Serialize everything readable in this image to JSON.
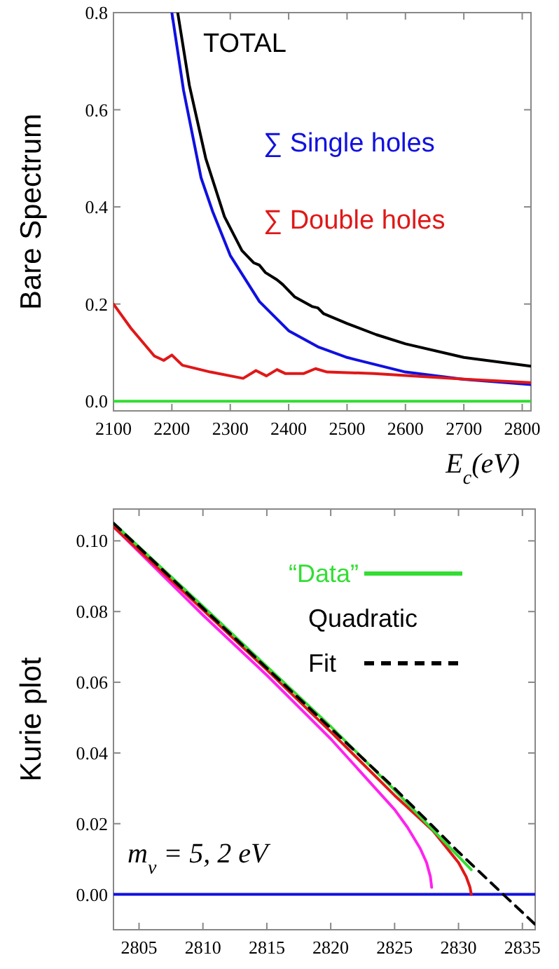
{
  "chart_data": [
    {
      "type": "line",
      "xlabel": "E$_{c}$(eV)",
      "ylabel": "Bare Spectrum",
      "xlim": [
        2100,
        2815
      ],
      "ylim": [
        -0.02,
        0.8
      ],
      "xticks": [
        2100,
        2200,
        2300,
        2400,
        2500,
        2600,
        2700,
        2800
      ],
      "yticks": [
        {
          "value": 0,
          "label": "0.0"
        },
        0.2,
        0.4,
        0.6,
        0.8
      ],
      "legend": false,
      "grid": false,
      "series": [
        {
          "color": "#33dd33",
          "x": [
            2100,
            2815
          ],
          "values": [
            0,
            0
          ]
        },
        {
          "name": "∑ Single holes",
          "color": "#1010e0",
          "x": [
            2200,
            2220,
            2250,
            2270,
            2300,
            2350,
            2400,
            2450,
            2500,
            2600,
            2700,
            2815
          ],
          "values": [
            0.8,
            0.64,
            0.46,
            0.39,
            0.3,
            0.205,
            0.145,
            0.112,
            0.09,
            0.06,
            0.045,
            0.034
          ]
        },
        {
          "name": "∑ Double holes",
          "color": "#e01818",
          "x": [
            2100,
            2130,
            2170,
            2186,
            2200,
            2218,
            2266,
            2322,
            2344,
            2362,
            2380,
            2394,
            2426,
            2446,
            2466,
            2546,
            2706,
            2815
          ],
          "values": [
            0.2,
            0.15,
            0.093,
            0.084,
            0.095,
            0.074,
            0.06,
            0.047,
            0.063,
            0.052,
            0.065,
            0.057,
            0.057,
            0.067,
            0.06,
            0.057,
            0.045,
            0.038
          ]
        },
        {
          "name": "TOTAL",
          "color": "#000000",
          "x": [
            2210,
            2230,
            2258,
            2290,
            2320,
            2340,
            2350,
            2360,
            2380,
            2390,
            2410,
            2440,
            2450,
            2460,
            2500,
            2550,
            2600,
            2700,
            2815
          ],
          "values": [
            0.8,
            0.65,
            0.5,
            0.38,
            0.31,
            0.285,
            0.28,
            0.265,
            0.25,
            0.24,
            0.215,
            0.195,
            0.192,
            0.18,
            0.16,
            0.137,
            0.118,
            0.09,
            0.072
          ]
        }
      ]
    },
    {
      "type": "line",
      "ylabel": "Kurie plot",
      "xlim": [
        2803,
        2836
      ],
      "ylim": [
        -0.01,
        0.109
      ],
      "xticks": [
        2805,
        2810,
        2815,
        2820,
        2825,
        2830,
        2835
      ],
      "yticks": [
        {
          "value": 0,
          "label": "0.00"
        },
        {
          "value": 0.02,
          "label": "0.02"
        },
        {
          "value": 0.04,
          "label": "0.04"
        },
        {
          "value": 0.06,
          "label": "0.06"
        },
        {
          "value": 0.08,
          "label": "0.08"
        },
        {
          "value": 0.1,
          "label": "0.10"
        }
      ],
      "legend": "top right",
      "grid": false,
      "annotations": [
        "m$_{ν}$ = 5, 2 eV"
      ],
      "series": [
        {
          "color": "#1010e0",
          "x": [
            2803,
            2836
          ],
          "values": [
            0,
            0
          ]
        },
        {
          "color": "#ff22ee",
          "x": [
            2803,
            2810,
            2815,
            2820,
            2825,
            2826,
            2827,
            2827.5,
            2827.8,
            2827.9
          ],
          "values": [
            0.104,
            0.079,
            0.062,
            0.044,
            0.024,
            0.019,
            0.013,
            0.009,
            0.005,
            0.002
          ]
        },
        {
          "color": "#e01818",
          "x": [
            2803,
            2810,
            2815,
            2820,
            2825,
            2828,
            2830,
            2830.6,
            2830.9,
            2831
          ],
          "values": [
            0.104,
            0.0805,
            0.0635,
            0.046,
            0.028,
            0.018,
            0.009,
            0.005,
            0.002,
            0
          ]
        },
        {
          "name": "“Data”",
          "color": "#33dd33",
          "x": [
            2803,
            2810,
            2815,
            2820,
            2825,
            2831
          ],
          "values": [
            0.105,
            0.0815,
            0.0645,
            0.0475,
            0.0295,
            0.007
          ]
        },
        {
          "name": "Quadratic Fit",
          "color": "#000000",
          "line_style": "dashed",
          "x": [
            2803,
            2810,
            2815,
            2820,
            2825,
            2830,
            2833.5,
            2836
          ],
          "values": [
            0.105,
            0.081,
            0.064,
            0.047,
            0.03,
            0.012,
            0,
            -0.0085
          ]
        }
      ]
    }
  ]
}
